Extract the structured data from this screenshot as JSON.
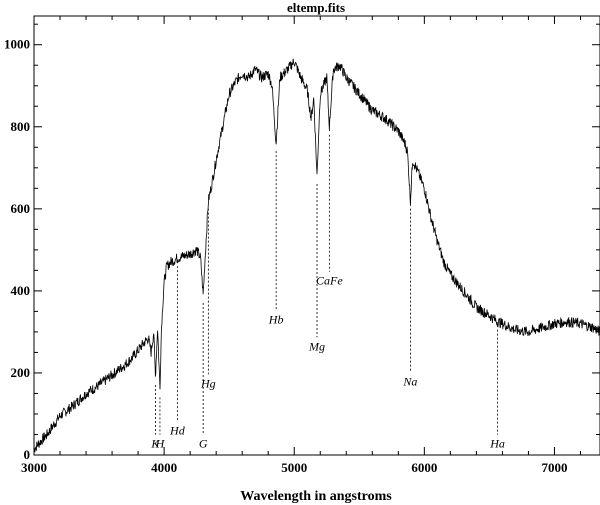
{
  "chart_data": {
    "type": "line",
    "title": "eltemp.fits",
    "xlabel": "Wavelength in angstroms",
    "ylabel": "",
    "xlim": [
      3000,
      7350
    ],
    "ylim": [
      0,
      1070
    ],
    "x_ticks": [
      3000,
      4000,
      5000,
      6000,
      7000
    ],
    "y_ticks": [
      0,
      200,
      400,
      600,
      800,
      1000
    ],
    "grid": false,
    "series": [
      {
        "x": [
          3000,
          3100,
          3200,
          3300,
          3400,
          3500,
          3600,
          3700,
          3750,
          3800,
          3850,
          3880,
          3900,
          3920,
          3933,
          3950,
          3968,
          3980,
          4000,
          4020,
          4050,
          4102,
          4150,
          4200,
          4250,
          4280,
          4300,
          4320,
          4340,
          4360,
          4400,
          4450,
          4500,
          4550,
          4600,
          4650,
          4700,
          4750,
          4800,
          4830,
          4861,
          4890,
          4950,
          5000,
          5050,
          5100,
          5130,
          5150,
          5175,
          5200,
          5250,
          5270,
          5300,
          5350,
          5400,
          5450,
          5500,
          5550,
          5600,
          5700,
          5800,
          5850,
          5870,
          5893,
          5910,
          5950,
          6000,
          6050,
          6100,
          6150,
          6200,
          6300,
          6400,
          6500,
          6563,
          6600,
          6700,
          6800,
          6900,
          7000,
          7100,
          7200,
          7300,
          7350
        ],
        "y": [
          15,
          50,
          95,
          120,
          150,
          170,
          195,
          220,
          235,
          255,
          275,
          285,
          250,
          300,
          190,
          310,
          160,
          315,
          420,
          460,
          470,
          480,
          485,
          490,
          500,
          480,
          390,
          510,
          620,
          650,
          720,
          800,
          880,
          910,
          930,
          920,
          940,
          920,
          930,
          900,
          760,
          920,
          940,
          960,
          920,
          890,
          820,
          870,
          680,
          880,
          920,
          800,
          940,
          950,
          920,
          900,
          880,
          860,
          840,
          820,
          790,
          760,
          740,
          620,
          720,
          690,
          650,
          580,
          520,
          470,
          440,
          400,
          360,
          340,
          325,
          320,
          305,
          300,
          310,
          320,
          325,
          320,
          310,
          300
        ]
      }
    ],
    "annotations": [
      {
        "label": "K",
        "x": 3933,
        "y": 18
      },
      {
        "label": "H",
        "x": 3968,
        "y": 18
      },
      {
        "label": "Hd",
        "x": 4102,
        "y": 50
      },
      {
        "label": "G",
        "x": 4300,
        "y": 18
      },
      {
        "label": "Hg",
        "x": 4340,
        "y": 165
      },
      {
        "label": "Hb",
        "x": 4861,
        "y": 320
      },
      {
        "label": "Mg",
        "x": 5175,
        "y": 255
      },
      {
        "label": "CaFe",
        "x": 5270,
        "y": 415
      },
      {
        "label": "Na",
        "x": 5893,
        "y": 170
      },
      {
        "label": "Ha",
        "x": 6563,
        "y": 18
      }
    ]
  }
}
